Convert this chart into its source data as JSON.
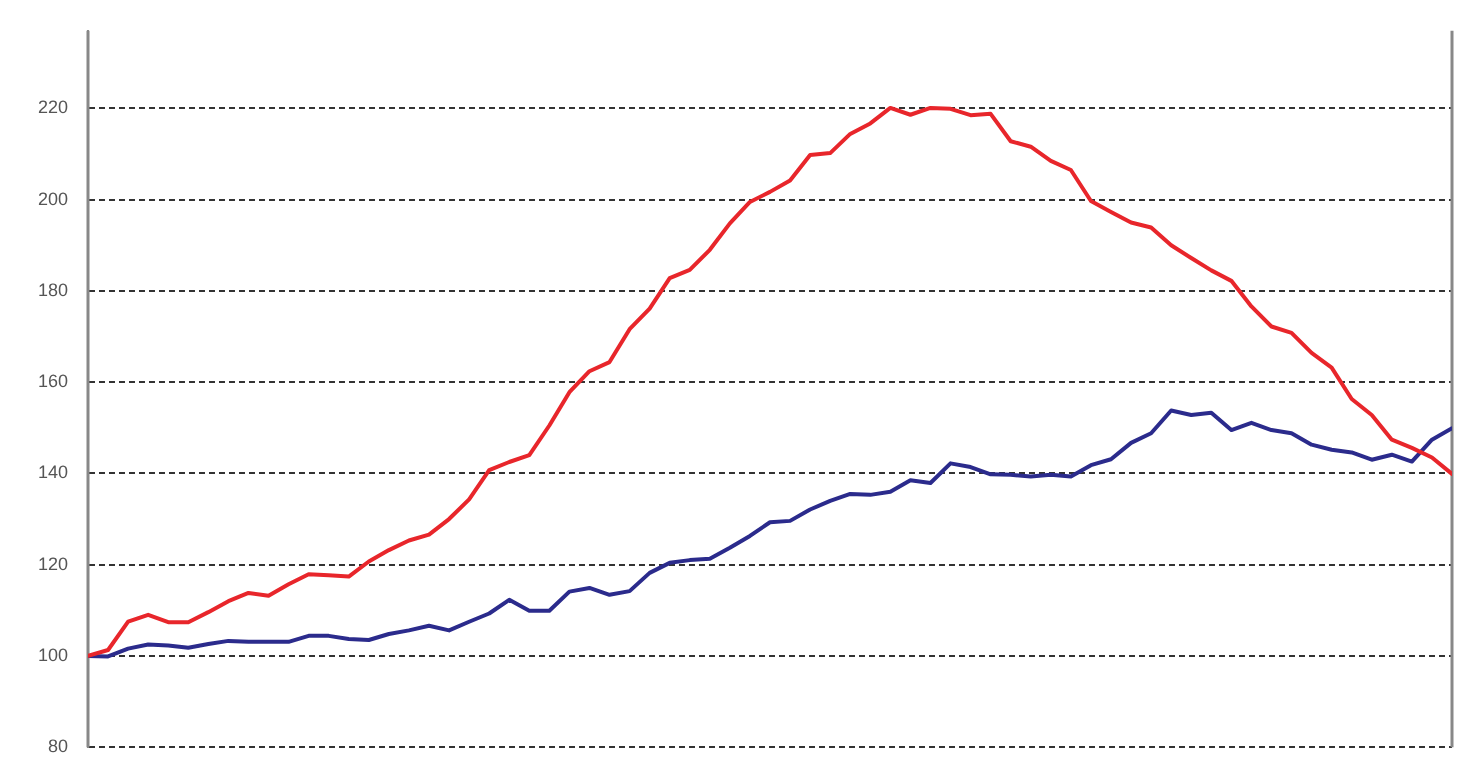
{
  "chart_data": {
    "type": "line",
    "categories": [
      null,
      null,
      null,
      null,
      null,
      null,
      null,
      null,
      null,
      null,
      null,
      null,
      null,
      null,
      null,
      null,
      null,
      null,
      null,
      null,
      null,
      null,
      null,
      null,
      null,
      null,
      null,
      null,
      null,
      null,
      null,
      null,
      null,
      null,
      null,
      null,
      null,
      null,
      null,
      null,
      null,
      null,
      null,
      null,
      null,
      null,
      null,
      null,
      null,
      null,
      null,
      null,
      null,
      null,
      null,
      null,
      null,
      null,
      null,
      null,
      null,
      null,
      null,
      null,
      null,
      null,
      null,
      null,
      null
    ],
    "ylim": [
      80,
      237
    ],
    "yticks": [
      80,
      100,
      120,
      140,
      160,
      180,
      200,
      220
    ],
    "grid": "y",
    "legend": false,
    "marker": "none",
    "line_style": "solid",
    "series": [
      {
        "color": "#e8262b",
        "values": [
          100,
          101.3,
          107.5,
          109,
          107.4,
          107.4,
          109.6,
          112,
          113.8,
          113.2,
          115.7,
          117.9,
          117.7,
          117.4,
          120.7,
          123.2,
          125.3,
          126.6,
          130,
          134.3,
          140.7,
          142.5,
          144,
          150.5,
          157.8,
          162.4,
          164.4,
          171.6,
          176.1,
          182.8,
          184.6,
          189,
          194.8,
          199.5,
          201.7,
          204.2,
          209.8,
          210.2,
          214.4,
          216.7,
          220.1,
          218.6,
          220.1,
          219.9,
          218.5,
          218.8,
          212.8,
          211.6,
          208.5,
          206.5,
          199.7,
          197.3,
          195,
          193.9,
          190,
          187.2,
          184.5,
          182.2,
          176.6,
          172.2,
          170.8,
          166.4,
          163.2,
          156.3,
          152.8,
          147.4,
          145.6,
          143.5,
          139.9
        ]
      },
      {
        "color": "#2b2b8c",
        "values": [
          100,
          99.9,
          101.6,
          102.5,
          102.3,
          101.8,
          102.6,
          103.3,
          103.1,
          103.1,
          103.1,
          104.4,
          104.4,
          103.7,
          103.5,
          104.8,
          105.6,
          106.6,
          105.6,
          107.5,
          109.3,
          112.3,
          109.9,
          109.9,
          114.1,
          114.9,
          113.4,
          114.2,
          118.2,
          120.4,
          121,
          121.3,
          123.7,
          126.3,
          129.3,
          129.6,
          132.1,
          134,
          135.5,
          135.3,
          136,
          138.5,
          137.9,
          142.2,
          141.4,
          139.8,
          139.7,
          139.3,
          139.7,
          139.3,
          141.8,
          143.1,
          146.7,
          148.8,
          153.8,
          152.8,
          153.3,
          149.5,
          151.1,
          149.5,
          148.8,
          146.3,
          145.2,
          144.6,
          143,
          144.1,
          142.6,
          147.4,
          149.9
        ]
      }
    ]
  }
}
